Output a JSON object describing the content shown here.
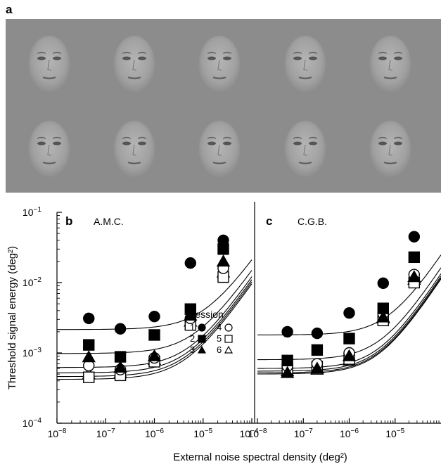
{
  "panel_a": {
    "letter": "a"
  },
  "chart_data": [
    {
      "panel": "b",
      "title": "A.M.C.",
      "type": "scatter",
      "xscale": "log",
      "yscale": "log",
      "xlim": [
        1e-08,
        0.0001
      ],
      "ylim": [
        0.0001,
        0.1
      ],
      "ylabel": "Threshold signal energy (deg²)",
      "xlabel": "External noise spectral density (deg²)",
      "x": [
        4.5e-08,
        2e-07,
        1e-06,
        5.5e-06,
        2.6e-05
      ],
      "series": [
        {
          "name": "1",
          "marker": "filled-circle",
          "values": [
            0.0031,
            0.0022,
            0.0033,
            0.019,
            0.04
          ]
        },
        {
          "name": "2",
          "marker": "filled-square",
          "values": [
            0.0013,
            0.00088,
            0.0018,
            0.0042,
            0.03
          ]
        },
        {
          "name": "3",
          "marker": "filled-triangle",
          "values": [
            0.00087,
            0.00062,
            0.0009,
            0.0034,
            0.02
          ]
        },
        {
          "name": "4",
          "marker": "open-circle",
          "values": [
            0.00066,
            0.00058,
            0.00085,
            0.0031,
            0.016
          ]
        },
        {
          "name": "5",
          "marker": "open-square",
          "values": [
            0.00045,
            0.00048,
            0.00075,
            0.0025,
            0.012
          ]
        },
        {
          "name": "6",
          "marker": "open-triangle",
          "values": [
            0.0005,
            0.00052,
            0.0008,
            0.0028,
            0.014
          ]
        }
      ],
      "fits": [
        {
          "n0": 0.00215,
          "k": 190
        },
        {
          "n0": 0.00098,
          "k": 140
        },
        {
          "n0": 0.00062,
          "k": 115
        },
        {
          "n0": 0.00052,
          "k": 105
        },
        {
          "n0": 0.00046,
          "k": 98
        },
        {
          "n0": 0.00042,
          "k": 92
        }
      ],
      "legend": {
        "title": "Session",
        "placement": "bottom-right",
        "entries": [
          "1",
          "2",
          "3",
          "4",
          "5",
          "6"
        ]
      }
    },
    {
      "panel": "c",
      "title": "C.G.B.",
      "type": "scatter",
      "xscale": "log",
      "yscale": "log",
      "xlim": [
        1e-08,
        0.0001
      ],
      "ylim": [
        0.0001,
        0.1
      ],
      "x": [
        4.5e-08,
        2e-07,
        1e-06,
        5.5e-06,
        2.6e-05
      ],
      "series": [
        {
          "name": "1",
          "marker": "filled-circle",
          "values": [
            0.002,
            0.0019,
            0.0037,
            0.0098,
            0.045
          ]
        },
        {
          "name": "2",
          "marker": "filled-square",
          "values": [
            0.00078,
            0.0011,
            0.0016,
            0.0043,
            0.023
          ]
        },
        {
          "name": "3",
          "marker": "filled-triangle",
          "values": [
            0.00052,
            0.0006,
            0.0009,
            0.0032,
            0.012
          ]
        },
        {
          "name": "4",
          "marker": "open-circle",
          "values": [
            0.00065,
            0.0007,
            0.001,
            0.0036,
            0.013
          ]
        },
        {
          "name": "5",
          "marker": "open-square",
          "values": [
            0.0006,
            0.00064,
            0.00082,
            0.0029,
            0.01
          ]
        },
        {
          "name": "6",
          "marker": "open-triangle",
          "values": [
            0.00055,
            0.00058,
            0.00078,
            0.0031,
            0.011
          ]
        }
      ],
      "fits": [
        {
          "n0": 0.0018,
          "k": 230
        },
        {
          "n0": 0.0008,
          "k": 155
        },
        {
          "n0": 0.0006,
          "k": 128
        },
        {
          "n0": 0.00055,
          "k": 118
        },
        {
          "n0": 0.00052,
          "k": 112
        },
        {
          "n0": 0.0005,
          "k": 108
        }
      ]
    }
  ]
}
